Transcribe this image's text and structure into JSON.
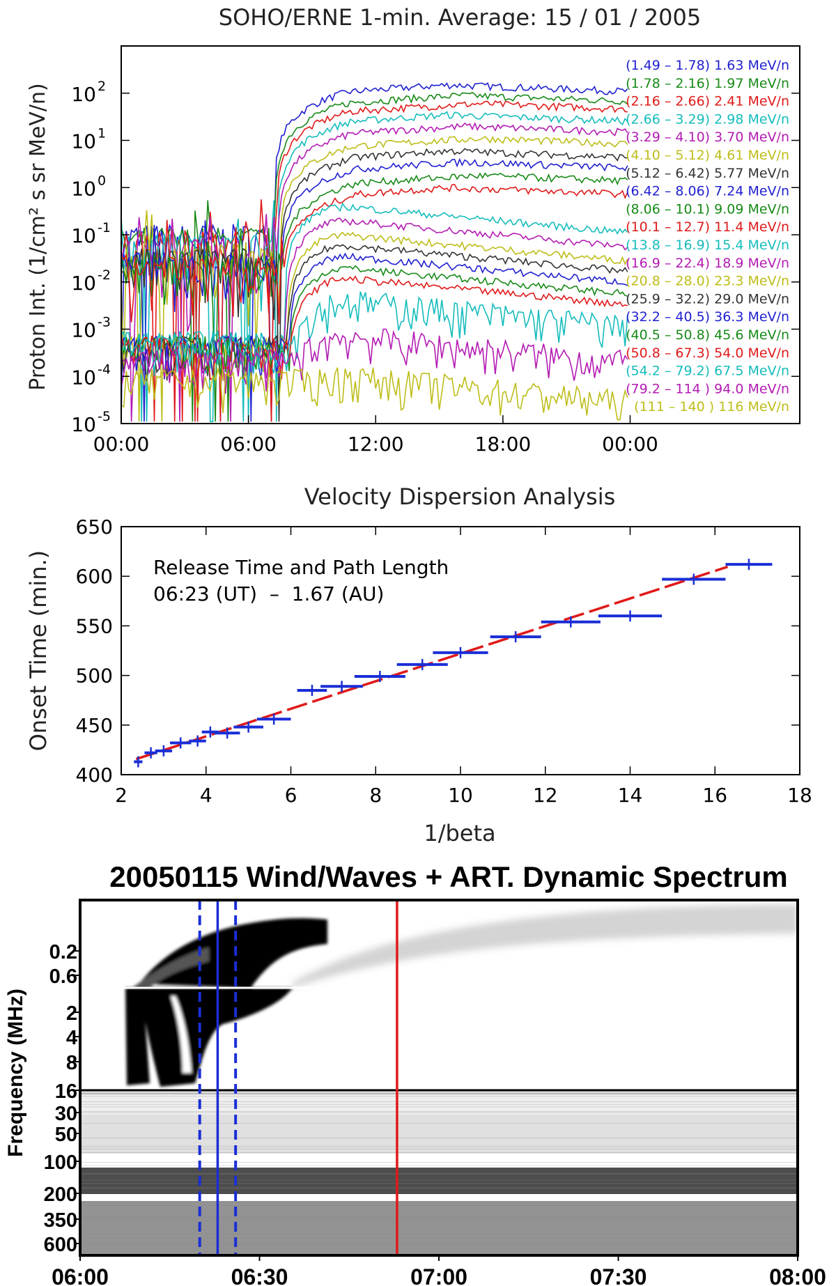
{
  "chart_data": [
    {
      "type": "line",
      "title": "SOHO/ERNE 1-min. Average: 15 / 01 / 2005",
      "ylabel": "Proton Int. (1/cm² s sr MeV/n)",
      "xlabel": "",
      "x_ticks": [
        "00:00",
        "06:00",
        "12:00",
        "18:00",
        "00:00"
      ],
      "y_scale": "log",
      "ylim": [
        1e-05,
        1000
      ],
      "y_ticks": [
        {
          "base": "10",
          "exp": "-5",
          "value": 1e-05
        },
        {
          "base": "10",
          "exp": "-4",
          "value": 0.0001
        },
        {
          "base": "10",
          "exp": "-3",
          "value": 0.001
        },
        {
          "base": "10",
          "exp": "-2",
          "value": 0.01
        },
        {
          "base": "10",
          "exp": "-1",
          "value": 0.1
        },
        {
          "base": "10",
          "exp": "0",
          "value": 1
        },
        {
          "base": "10",
          "exp": "1",
          "value": 10
        },
        {
          "base": "10",
          "exp": "2",
          "value": 100
        }
      ],
      "legend_position": "right",
      "series": [
        {
          "name": "(1.49 – 1.78) 1.63 MeV/n",
          "color": "#1f1fd0",
          "pre": 0.08,
          "peak": 150
        },
        {
          "name": "(1.78 – 2.16) 1.97 MeV/n",
          "color": "#178a17",
          "pre": 0.07,
          "peak": 90
        },
        {
          "name": "(2.16 – 2.66) 2.41 MeV/n",
          "color": "#e01a1a",
          "pre": 0.06,
          "peak": 60
        },
        {
          "name": "(2.66 – 3.29) 2.98 MeV/n",
          "color": "#16bcbc",
          "pre": 0.05,
          "peak": 35
        },
        {
          "name": "(3.29 – 4.10) 3.70 MeV/n",
          "color": "#b31bb3",
          "pre": 0.04,
          "peak": 20
        },
        {
          "name": "(4.10 – 5.12) 4.61 MeV/n",
          "color": "#bdbd1a",
          "pre": 0.03,
          "peak": 11
        },
        {
          "name": "(5.12 – 6.42) 5.77 MeV/n",
          "color": "#333333",
          "pre": 0.025,
          "peak": 6
        },
        {
          "name": "(6.42 – 8.06) 7.24 MeV/n",
          "color": "#1f1fd0",
          "pre": 0.02,
          "peak": 3.5
        },
        {
          "name": "(8.06 – 10.1) 9.09 MeV/n",
          "color": "#178a17",
          "pre": 0.02,
          "peak": 1.8
        },
        {
          "name": "(10.1 – 12.7) 11.4 MeV/n",
          "color": "#e01a1a",
          "pre": 0.018,
          "peak": 1.0
        },
        {
          "name": "(13.8 – 16.9) 15.4 MeV/n",
          "color": "#16bcbc",
          "pre": 0.0005,
          "peak": 0.4
        },
        {
          "name": "(16.9 – 22.4) 18.9 MeV/n",
          "color": "#b31bb3",
          "pre": 0.0004,
          "peak": 0.2
        },
        {
          "name": "(20.8 – 28.0) 23.3 MeV/n",
          "color": "#bdbd1a",
          "pre": 0.0004,
          "peak": 0.1
        },
        {
          "name": "(25.9 – 32.2) 29.0 MeV/n",
          "color": "#333333",
          "pre": 0.0004,
          "peak": 0.06
        },
        {
          "name": "(32.2 – 40.5) 36.3 MeV/n",
          "color": "#1f1fd0",
          "pre": 0.0004,
          "peak": 0.035
        },
        {
          "name": "(40.5 – 50.8) 45.6 MeV/n",
          "color": "#178a17",
          "pre": 0.0004,
          "peak": 0.02
        },
        {
          "name": "(50.8 – 67.3) 54.0 MeV/n",
          "color": "#e01a1a",
          "pre": 0.0004,
          "peak": 0.012
        },
        {
          "name": "(54.2 – 79.2) 67.5 MeV/n",
          "color": "#16bcbc",
          "pre": 0.0005,
          "peak": 0.004
        },
        {
          "name": "(79.2 – 114 ) 94.0 MeV/n",
          "color": "#b31bb3",
          "pre": 0.0002,
          "peak": 0.0007
        },
        {
          "name": "(111 – 140 ) 116 MeV/n",
          "color": "#bdbd1a",
          "pre": 8e-05,
          "peak": 0.0001
        }
      ]
    },
    {
      "type": "scatter",
      "title": "Velocity Dispersion Analysis",
      "xlabel": "1/beta",
      "ylabel": "Onset Time (min.)",
      "xlim": [
        2,
        18
      ],
      "ylim": [
        400,
        650
      ],
      "x_ticks": [
        2,
        4,
        6,
        8,
        10,
        12,
        14,
        16,
        18
      ],
      "y_ticks": [
        400,
        450,
        500,
        550,
        600,
        650
      ],
      "annotation": [
        "Release Time and Path Length",
        "06:23 (UT)  –  1.67 (AU)"
      ],
      "fit": {
        "color": "#e01a1a",
        "intercept": 383,
        "slope": 13.9,
        "x_range": [
          2.35,
          16.3
        ]
      },
      "points": [
        {
          "x": 2.4,
          "y": 413,
          "xerr": 0.1
        },
        {
          "x": 2.7,
          "y": 422,
          "xerr": 0.15
        },
        {
          "x": 3.0,
          "y": 424,
          "xerr": 0.2
        },
        {
          "x": 3.4,
          "y": 432,
          "xerr": 0.25
        },
        {
          "x": 3.8,
          "y": 434,
          "xerr": 0.2
        },
        {
          "x": 4.1,
          "y": 443,
          "xerr": 0.2
        },
        {
          "x": 4.5,
          "y": 442,
          "xerr": 0.3
        },
        {
          "x": 5.0,
          "y": 448,
          "xerr": 0.35
        },
        {
          "x": 5.6,
          "y": 456,
          "xerr": 0.4
        },
        {
          "x": 6.5,
          "y": 485,
          "xerr": 0.35
        },
        {
          "x": 7.2,
          "y": 489,
          "xerr": 0.5
        },
        {
          "x": 8.1,
          "y": 499,
          "xerr": 0.6
        },
        {
          "x": 9.1,
          "y": 511,
          "xerr": 0.6
        },
        {
          "x": 10.0,
          "y": 523,
          "xerr": 0.65
        },
        {
          "x": 11.3,
          "y": 539,
          "xerr": 0.6
        },
        {
          "x": 12.6,
          "y": 554,
          "xerr": 0.7
        },
        {
          "x": 14.0,
          "y": 560,
          "xerr": 0.75
        },
        {
          "x": 15.5,
          "y": 597,
          "xerr": 0.75
        },
        {
          "x": 16.8,
          "y": 612,
          "xerr": 0.55
        }
      ]
    },
    {
      "type": "heatmap",
      "title": "20050115 Wind/Waves + ART. Dynamic Spectrum",
      "ylabel": "Frequency (MHz)",
      "xlabel": "",
      "x_ticks": [
        "06:00",
        "06:30",
        "07:00",
        "07:30",
        "08:00"
      ],
      "y_ticks": [
        "0.2",
        "0.6",
        "2",
        "4",
        "8",
        "16",
        "30",
        "50",
        "100",
        "200",
        "350",
        "600"
      ],
      "markers": [
        {
          "time": "06:23",
          "style": "solid",
          "color": "#1a2ed6"
        },
        {
          "time": "06:20",
          "style": "dashed",
          "color": "#1a2ed6"
        },
        {
          "time": "06:26",
          "style": "dashed",
          "color": "#1a2ed6"
        },
        {
          "time": "06:53",
          "style": "solid",
          "color": "#e01a1a"
        }
      ]
    }
  ]
}
